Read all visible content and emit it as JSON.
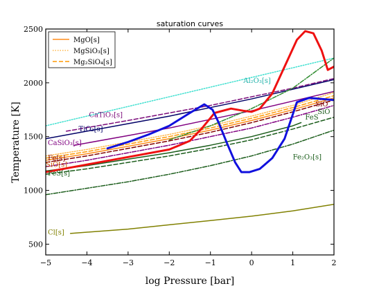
{
  "chart_data": {
    "type": "line",
    "title": "saturation curves",
    "xlabel": "log Pressure [bar]",
    "ylabel": "Temperature [K]",
    "xlim": [
      -5,
      2
    ],
    "ylim": [
      400,
      2500
    ],
    "xticks": [
      -5,
      -4,
      -3,
      -2,
      -1,
      0,
      1,
      2
    ],
    "xtick_labels": [
      "−5",
      "−4",
      "−3",
      "−2",
      "−1",
      "0",
      "1",
      "2"
    ],
    "yticks": [
      500,
      1000,
      1500,
      2000,
      2500
    ],
    "ytick_labels": [
      "500",
      "1000",
      "1500",
      "2000",
      "2500"
    ],
    "grid": false,
    "legend_position": "top-left",
    "legend": [
      {
        "label": "MgO[s]",
        "color": "#ff8c1a",
        "dash": "solid"
      },
      {
        "label": "MgSiO₃[s]",
        "color": "#ffb84d",
        "dash": "dotted"
      },
      {
        "label": "Mg₂SiO₄[s]",
        "color": "#ff9900",
        "dash": "dashed"
      }
    ],
    "series": [
      {
        "color": "#40e0d0",
        "dash": "dotted",
        "width": 1.5,
        "x": [
          -5,
          -4,
          -3,
          -2,
          -1,
          0,
          1,
          2
        ],
        "y": [
          1600,
          1690,
          1780,
          1870,
          1960,
          2050,
          2140,
          2230
        ]
      },
      {
        "color": "#7a0a7a",
        "dash": "dashed",
        "width": 1.5,
        "x": [
          -4.5,
          -3,
          -2,
          -1,
          0,
          1,
          2
        ],
        "y": [
          1550,
          1650,
          1720,
          1790,
          1870,
          1950,
          2040
        ]
      },
      {
        "color": "#000066",
        "dash": "solid",
        "width": 1.5,
        "x": [
          -5,
          -4,
          -3,
          -2,
          -1,
          0,
          1,
          2
        ],
        "y": [
          1480,
          1550,
          1620,
          1690,
          1770,
          1850,
          1940,
          2030
        ]
      },
      {
        "color": "#800080",
        "dash": "solid",
        "width": 1.5,
        "x": [
          -4.3,
          -3,
          -2,
          -1,
          0,
          1,
          2
        ],
        "y": [
          1420,
          1510,
          1580,
          1660,
          1740,
          1830,
          1920
        ]
      },
      {
        "color": "#800000",
        "dash": "dashed",
        "width": 1.5,
        "x": [
          -5,
          -4,
          -3,
          -2,
          -1,
          0,
          1,
          2
        ],
        "y": [
          1260,
          1320,
          1390,
          1460,
          1540,
          1630,
          1730,
          1840
        ]
      },
      {
        "color": "#800080",
        "dash": "dashdot",
        "width": 1.5,
        "x": [
          -5,
          -4,
          -3,
          -2,
          -1,
          0,
          1,
          2
        ],
        "y": [
          1220,
          1280,
          1350,
          1420,
          1500,
          1580,
          1680,
          1790
        ]
      },
      {
        "color": "#ff8c1a",
        "dash": "solid",
        "width": 1.5,
        "x": [
          -5,
          -4,
          -3,
          -2,
          -1,
          0,
          1,
          2
        ],
        "y": [
          1280,
          1340,
          1410,
          1480,
          1560,
          1650,
          1750,
          1860
        ]
      },
      {
        "color": "#ffb84d",
        "dash": "dotted",
        "width": 1.5,
        "x": [
          -5,
          -4,
          -3,
          -2,
          -1,
          0,
          1,
          2
        ],
        "y": [
          1320,
          1380,
          1450,
          1520,
          1600,
          1690,
          1790,
          1910
        ]
      },
      {
        "color": "#ff9900",
        "dash": "dashed",
        "width": 1.5,
        "x": [
          -5,
          -4,
          -3,
          -2,
          -1,
          0,
          1,
          2
        ],
        "y": [
          1300,
          1360,
          1430,
          1500,
          1580,
          1670,
          1770,
          1880
        ]
      },
      {
        "color": "#1a5c1a",
        "dash": "solid",
        "width": 1.5,
        "x": [
          -5,
          -4,
          -3,
          -2,
          -1,
          0,
          1,
          1.2
        ],
        "y": [
          1180,
          1230,
          1290,
          1350,
          1420,
          1500,
          1600,
          1630
        ]
      },
      {
        "color": "#1a5c1a",
        "dash": "dashed",
        "width": 1.5,
        "x": [
          -5,
          -4,
          -3,
          -2,
          -1,
          0,
          1,
          2
        ],
        "y": [
          1150,
          1200,
          1260,
          1320,
          1390,
          1470,
          1570,
          1680
        ]
      },
      {
        "color": "#1a5c1a",
        "dash": "dashdot",
        "width": 1.5,
        "x": [
          -5,
          -4,
          -3,
          -2,
          -1,
          0,
          1,
          2
        ],
        "y": [
          960,
          1020,
          1080,
          1150,
          1230,
          1320,
          1430,
          1560
        ]
      },
      {
        "color": "#2e8b2e",
        "dash": "dashdot",
        "width": 1.5,
        "x": [
          -2,
          -1,
          0,
          1,
          2
        ],
        "y": [
          1470,
          1600,
          1760,
          1950,
          2230
        ]
      },
      {
        "color": "#808000",
        "dash": "solid",
        "width": 1.5,
        "x": [
          -4.4,
          -3,
          -2,
          -1,
          0,
          1,
          2
        ],
        "y": [
          600,
          640,
          680,
          720,
          760,
          810,
          870
        ]
      },
      {
        "color": "#ee1111",
        "dash": "solid",
        "width": 3,
        "x": [
          -5,
          -4,
          -3,
          -2,
          -1.5,
          -1.2,
          -0.9,
          -0.5,
          -0.2,
          0,
          0.2,
          0.5,
          0.8,
          1.1,
          1.3,
          1.5,
          1.7,
          1.85,
          2
        ],
        "y": [
          1170,
          1240,
          1310,
          1380,
          1460,
          1580,
          1720,
          1760,
          1740,
          1730,
          1760,
          1900,
          2150,
          2400,
          2480,
          2460,
          2300,
          2120,
          2150
        ]
      },
      {
        "color": "#1010dd",
        "dash": "solid",
        "width": 3,
        "x": [
          -3.5,
          -3,
          -2.5,
          -2,
          -1.5,
          -1.15,
          -0.95,
          -0.8,
          -0.6,
          -0.4,
          -0.25,
          -0.05,
          0.2,
          0.5,
          0.8,
          1.1,
          1.4,
          1.7,
          2
        ],
        "y": [
          1390,
          1450,
          1520,
          1600,
          1720,
          1800,
          1750,
          1630,
          1440,
          1260,
          1170,
          1170,
          1200,
          1300,
          1480,
          1820,
          1860,
          1850,
          1840
        ]
      }
    ],
    "annotations": [
      {
        "text": "Al₂O₃[s]",
        "x": -0.2,
        "y": 2000,
        "color": "#20b2aa"
      },
      {
        "text": "CaTiO₃[s]",
        "x": -3.95,
        "y": 1680,
        "color": "#7a0a7a"
      },
      {
        "text": "TiO₂[s]",
        "x": -4.2,
        "y": 1550,
        "color": "#000066"
      },
      {
        "text": "CaSiO₃[s]",
        "x": -4.95,
        "y": 1420,
        "color": "#800080"
      },
      {
        "text": "Fe[s]",
        "x": -4.95,
        "y": 1280,
        "color": "#800000"
      },
      {
        "text": "SiO[s]",
        "x": -5,
        "y": 1220,
        "color": "#cc5500"
      },
      {
        "text": "FeS[s]",
        "x": -4.95,
        "y": 1140,
        "color": "#1a5c1a"
      },
      {
        "text": "Cl[s]",
        "x": -4.95,
        "y": 590,
        "color": "#808000"
      },
      {
        "text": "Fe₂O₃[s]",
        "x": 1,
        "y": 1290,
        "color": "#1a5c1a"
      },
      {
        "text": "SiO",
        "x": 1.55,
        "y": 1780,
        "color": "#800000"
      },
      {
        "text": "FeS",
        "x": 1.3,
        "y": 1660,
        "color": "#1a5c1a"
      },
      {
        "text": "SiO",
        "x": 1.6,
        "y": 1710,
        "color": "#1a5c1a"
      }
    ]
  }
}
